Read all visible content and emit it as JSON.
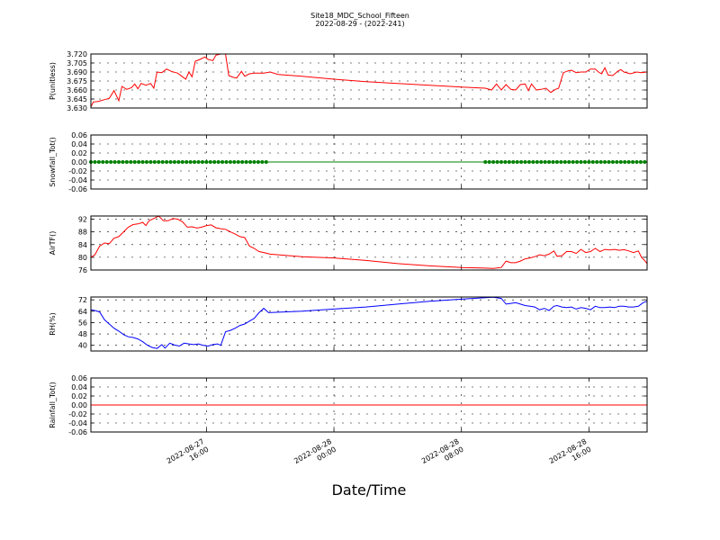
{
  "title": "Site18_MDC_School_Fifteen",
  "subtitle": "2022-08-29 - (2022-241)",
  "xlabel": "Date/Time",
  "x_ticks": [
    {
      "label": [
        "2022-08-27",
        "16:00"
      ],
      "t": 16
    },
    {
      "label": [
        "2022-08-28",
        "00:00"
      ],
      "t": 24
    },
    {
      "label": [
        "2022-08-28",
        "08:00"
      ],
      "t": 32
    },
    {
      "label": [
        "2022-08-28",
        "16:00"
      ],
      "t": 40
    }
  ],
  "x_range_hours_from_2022-08-27": [
    8.75,
    43.65
  ],
  "chart_data": [
    {
      "type": "line",
      "ylabel": "P(unitless)",
      "ylim": [
        3.63,
        3.72
      ],
      "yticks": [
        "3.630",
        "3.645",
        "3.660",
        "3.675",
        "3.690",
        "3.705",
        "3.720"
      ],
      "color": "#ff0000",
      "series": [
        {
          "points": [
            [
              8.75,
              3.632
            ],
            [
              8.9,
              3.64
            ],
            [
              9.2,
              3.641
            ],
            [
              9.6,
              3.644
            ],
            [
              9.9,
              3.646
            ],
            [
              10.2,
              3.659
            ],
            [
              10.5,
              3.642
            ],
            [
              10.7,
              3.666
            ],
            [
              11.0,
              3.661
            ],
            [
              11.3,
              3.664
            ],
            [
              11.5,
              3.67
            ],
            [
              11.7,
              3.662
            ],
            [
              11.9,
              3.671
            ],
            [
              12.2,
              3.668
            ],
            [
              12.5,
              3.671
            ],
            [
              12.7,
              3.663
            ],
            [
              12.9,
              3.69
            ],
            [
              13.2,
              3.689
            ],
            [
              13.5,
              3.695
            ],
            [
              13.8,
              3.691
            ],
            [
              14.2,
              3.688
            ],
            [
              14.5,
              3.682
            ],
            [
              14.7,
              3.678
            ],
            [
              14.9,
              3.69
            ],
            [
              15.1,
              3.682
            ],
            [
              15.3,
              3.708
            ],
            [
              15.6,
              3.711
            ],
            [
              15.9,
              3.715
            ],
            [
              16.1,
              3.711
            ],
            [
              16.4,
              3.709
            ],
            [
              16.6,
              3.718
            ],
            [
              16.9,
              3.72
            ],
            [
              17.2,
              3.72
            ],
            [
              17.4,
              3.684
            ],
            [
              17.7,
              3.681
            ],
            [
              17.9,
              3.68
            ],
            [
              18.2,
              3.691
            ],
            [
              18.4,
              3.683
            ],
            [
              18.7,
              3.687
            ],
            [
              19.0,
              3.688
            ],
            [
              19.6,
              3.688
            ],
            [
              20.0,
              3.69
            ],
            [
              20.5,
              3.686
            ],
            [
              22,
              3.683
            ],
            [
              24,
              3.678
            ],
            [
              26,
              3.674
            ],
            [
              28,
              3.671
            ],
            [
              30,
              3.668
            ],
            [
              32,
              3.665
            ],
            [
              33.5,
              3.663
            ],
            [
              33.9,
              3.66
            ],
            [
              34.2,
              3.67
            ],
            [
              34.5,
              3.66
            ],
            [
              34.8,
              3.669
            ],
            [
              35.1,
              3.661
            ],
            [
              35.4,
              3.66
            ],
            [
              35.7,
              3.669
            ],
            [
              36.0,
              3.67
            ],
            [
              36.2,
              3.659
            ],
            [
              36.4,
              3.67
            ],
            [
              36.7,
              3.66
            ],
            [
              37.0,
              3.661
            ],
            [
              37.3,
              3.663
            ],
            [
              37.6,
              3.656
            ],
            [
              37.9,
              3.661
            ],
            [
              38.1,
              3.663
            ],
            [
              38.4,
              3.689
            ],
            [
              38.7,
              3.692
            ],
            [
              38.9,
              3.693
            ],
            [
              39.2,
              3.689
            ],
            [
              39.5,
              3.69
            ],
            [
              39.8,
              3.69
            ],
            [
              40.1,
              3.695
            ],
            [
              40.4,
              3.695
            ],
            [
              40.6,
              3.69
            ],
            [
              40.8,
              3.687
            ],
            [
              41.0,
              3.697
            ],
            [
              41.2,
              3.685
            ],
            [
              41.5,
              3.684
            ],
            [
              41.8,
              3.691
            ],
            [
              42.0,
              3.694
            ],
            [
              42.2,
              3.69
            ],
            [
              42.6,
              3.687
            ],
            [
              43.0,
              3.69
            ],
            [
              43.3,
              3.689
            ],
            [
              43.65,
              3.69
            ]
          ]
        }
      ]
    },
    {
      "type": "scatter",
      "ylabel": "Snowfall_Tot()",
      "ylim": [
        -0.06,
        0.06
      ],
      "yticks": [
        "-0.06",
        "-0.04",
        "-0.02",
        "0.00",
        "0.02",
        "0.04",
        "0.06"
      ],
      "color": "#008000",
      "baseline": 0,
      "marker_ranges_hours": [
        [
          8.75,
          19.8,
          0.25
        ],
        [
          33.5,
          43.65,
          0.25
        ]
      ],
      "series": [
        {
          "points": [
            [
              8.75,
              0
            ],
            [
              43.65,
              0
            ]
          ]
        }
      ]
    },
    {
      "type": "line",
      "ylabel": "AirTF()",
      "ylim": [
        76,
        93
      ],
      "yticks": [
        "76",
        "80",
        "84",
        "88",
        "92"
      ],
      "color": "#ff0000",
      "series": [
        {
          "points": [
            [
              8.75,
              80.0
            ],
            [
              9.0,
              80.8
            ],
            [
              9.3,
              83.5
            ],
            [
              9.6,
              84.5
            ],
            [
              9.9,
              84.3
            ],
            [
              10.2,
              86.0
            ],
            [
              10.5,
              86.5
            ],
            [
              10.8,
              88.0
            ],
            [
              11.1,
              89.5
            ],
            [
              11.4,
              90.3
            ],
            [
              11.7,
              90.5
            ],
            [
              12.0,
              91.0
            ],
            [
              12.2,
              90.0
            ],
            [
              12.4,
              91.5
            ],
            [
              12.7,
              92.2
            ],
            [
              13.0,
              93.0
            ],
            [
              13.3,
              91.5
            ],
            [
              13.6,
              91.5
            ],
            [
              13.9,
              92.2
            ],
            [
              14.2,
              92.0
            ],
            [
              14.5,
              91.2
            ],
            [
              14.8,
              89.5
            ],
            [
              15.1,
              89.6
            ],
            [
              15.4,
              89.2
            ],
            [
              15.7,
              89.5
            ],
            [
              16.0,
              90.0
            ],
            [
              16.3,
              90.2
            ],
            [
              16.6,
              89.3
            ],
            [
              16.9,
              89.0
            ],
            [
              17.2,
              88.8
            ],
            [
              17.5,
              88.0
            ],
            [
              17.8,
              87.3
            ],
            [
              18.1,
              86.5
            ],
            [
              18.4,
              86.2
            ],
            [
              18.7,
              83.5
            ],
            [
              19.0,
              82.8
            ],
            [
              19.3,
              81.8
            ],
            [
              19.6,
              81.5
            ],
            [
              20.0,
              81.0
            ],
            [
              22,
              80.2
            ],
            [
              24,
              79.8
            ],
            [
              26,
              79.0
            ],
            [
              28,
              78.0
            ],
            [
              30,
              77.3
            ],
            [
              32,
              76.8
            ],
            [
              33.5,
              76.6
            ],
            [
              34.0,
              76.5
            ],
            [
              34.5,
              76.8
            ],
            [
              34.8,
              78.8
            ],
            [
              35.1,
              78.3
            ],
            [
              35.4,
              78.3
            ],
            [
              35.7,
              78.8
            ],
            [
              36.0,
              79.5
            ],
            [
              36.3,
              79.8
            ],
            [
              36.6,
              80.2
            ],
            [
              36.9,
              80.8
            ],
            [
              37.2,
              80.5
            ],
            [
              37.5,
              81.0
            ],
            [
              37.8,
              82.0
            ],
            [
              38.0,
              80.3
            ],
            [
              38.3,
              80.5
            ],
            [
              38.6,
              81.8
            ],
            [
              38.9,
              81.8
            ],
            [
              39.2,
              81.2
            ],
            [
              39.5,
              82.5
            ],
            [
              39.8,
              81.5
            ],
            [
              40.1,
              81.8
            ],
            [
              40.4,
              82.8
            ],
            [
              40.7,
              81.8
            ],
            [
              41.0,
              82.5
            ],
            [
              41.3,
              82.3
            ],
            [
              41.6,
              82.5
            ],
            [
              41.9,
              82.2
            ],
            [
              42.2,
              82.4
            ],
            [
              42.5,
              82.0
            ],
            [
              42.8,
              81.5
            ],
            [
              43.1,
              82.0
            ],
            [
              43.3,
              80.0
            ],
            [
              43.5,
              79.0
            ],
            [
              43.65,
              78.0
            ]
          ]
        }
      ]
    },
    {
      "type": "line",
      "ylabel": "RH(%)",
      "ylim": [
        36,
        74
      ],
      "yticks": [
        "40",
        "48",
        "56",
        "64",
        "72"
      ],
      "color": "#0000ff",
      "series": [
        {
          "points": [
            [
              8.75,
              65.0
            ],
            [
              9.0,
              64.5
            ],
            [
              9.3,
              63.5
            ],
            [
              9.6,
              58.0
            ],
            [
              9.9,
              55.0
            ],
            [
              10.2,
              52.0
            ],
            [
              10.5,
              50.0
            ],
            [
              10.8,
              47.5
            ],
            [
              11.1,
              46.0
            ],
            [
              11.4,
              45.5
            ],
            [
              11.7,
              44.5
            ],
            [
              12.0,
              42.5
            ],
            [
              12.3,
              40.0
            ],
            [
              12.6,
              38.5
            ],
            [
              12.9,
              37.8
            ],
            [
              13.2,
              40.5
            ],
            [
              13.4,
              38.0
            ],
            [
              13.7,
              41.5
            ],
            [
              14.0,
              40.2
            ],
            [
              14.3,
              39.5
            ],
            [
              14.6,
              41.5
            ],
            [
              14.9,
              41.0
            ],
            [
              15.2,
              40.5
            ],
            [
              15.5,
              41.0
            ],
            [
              15.8,
              40.0
            ],
            [
              16.1,
              39.5
            ],
            [
              16.4,
              40.5
            ],
            [
              16.7,
              41.0
            ],
            [
              16.9,
              40.0
            ],
            [
              17.2,
              49.5
            ],
            [
              17.5,
              50.5
            ],
            [
              17.8,
              52.0
            ],
            [
              18.1,
              54.0
            ],
            [
              18.4,
              55.0
            ],
            [
              18.7,
              57.0
            ],
            [
              19.0,
              59.0
            ],
            [
              19.3,
              63.0
            ],
            [
              19.6,
              66.0
            ],
            [
              19.9,
              63.0
            ],
            [
              22,
              64.0
            ],
            [
              24,
              65.5
            ],
            [
              26,
              67.0
            ],
            [
              28,
              69.0
            ],
            [
              30,
              71.0
            ],
            [
              32,
              72.5
            ],
            [
              33.5,
              73.5
            ],
            [
              34.0,
              73.8
            ],
            [
              34.5,
              73.0
            ],
            [
              34.8,
              69.0
            ],
            [
              35.1,
              69.5
            ],
            [
              35.4,
              70.0
            ],
            [
              35.7,
              69.0
            ],
            [
              36.0,
              68.0
            ],
            [
              36.3,
              67.5
            ],
            [
              36.6,
              67.0
            ],
            [
              36.9,
              65.0
            ],
            [
              37.2,
              66.0
            ],
            [
              37.5,
              64.5
            ],
            [
              37.8,
              67.5
            ],
            [
              38.0,
              68.0
            ],
            [
              38.3,
              67.0
            ],
            [
              38.6,
              66.5
            ],
            [
              38.9,
              67.0
            ],
            [
              39.2,
              65.5
            ],
            [
              39.5,
              66.5
            ],
            [
              39.8,
              66.0
            ],
            [
              40.1,
              65.0
            ],
            [
              40.4,
              67.5
            ],
            [
              40.7,
              66.5
            ],
            [
              41.0,
              66.5
            ],
            [
              41.3,
              67.0
            ],
            [
              41.6,
              66.5
            ],
            [
              41.9,
              67.5
            ],
            [
              42.2,
              67.5
            ],
            [
              42.5,
              67.0
            ],
            [
              42.8,
              67.0
            ],
            [
              43.1,
              67.5
            ],
            [
              43.4,
              70.0
            ],
            [
              43.65,
              71.0
            ]
          ]
        }
      ]
    },
    {
      "type": "line",
      "ylabel": "Rainfall_Tot()",
      "ylim": [
        -0.06,
        0.06
      ],
      "yticks": [
        "-0.06",
        "-0.04",
        "-0.02",
        "0.00",
        "0.02",
        "0.04",
        "0.06"
      ],
      "color": "#ff0000",
      "series": [
        {
          "points": [
            [
              8.75,
              0
            ],
            [
              43.65,
              0
            ]
          ]
        }
      ]
    }
  ]
}
